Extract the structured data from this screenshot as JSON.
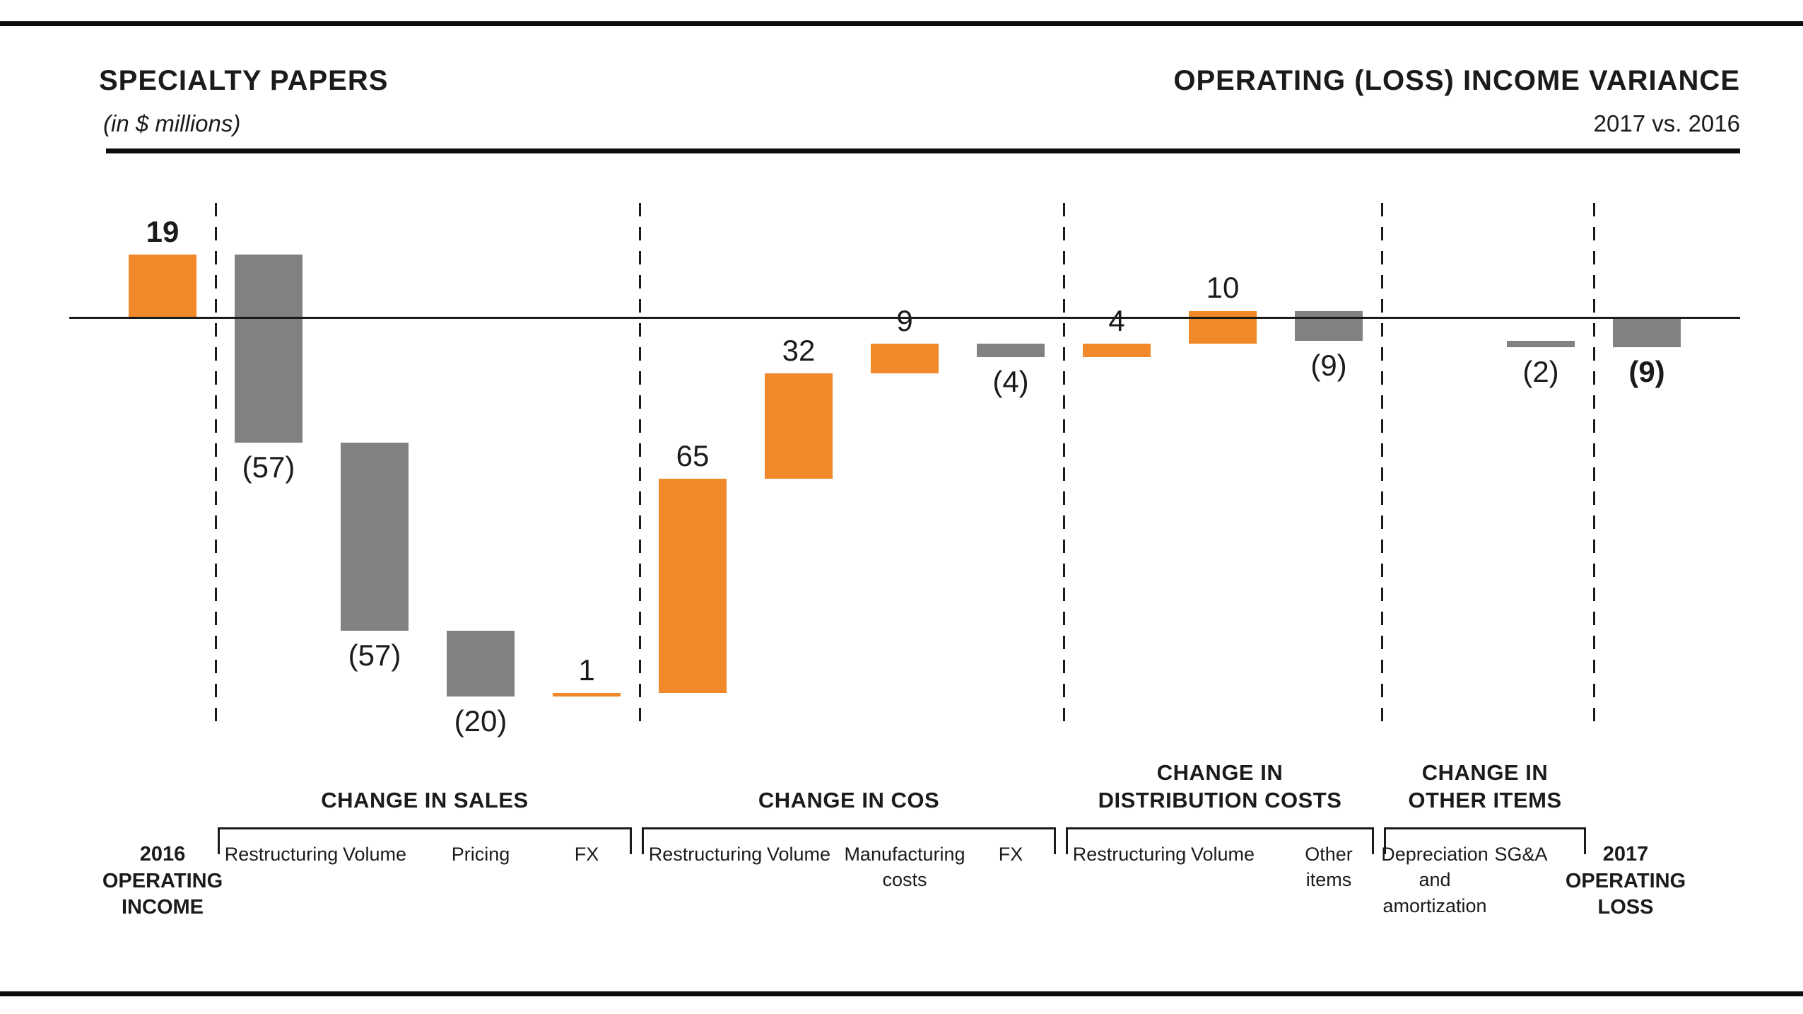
{
  "header": {
    "title": "SPECIALTY PAPERS",
    "subtitle": "(in $ millions)",
    "right_title": "OPERATING (LOSS) INCOME VARIANCE",
    "right_subtitle": "2017 vs. 2016"
  },
  "colors": {
    "positive": "#F1892B",
    "negative": "#818181",
    "ink": "#1b1b1b"
  },
  "chart_data": {
    "type": "waterfall",
    "title": "SPECIALTY PAPERS",
    "subtitle": "OPERATING (LOSS) INCOME VARIANCE 2017 vs. 2016",
    "unit": "$ millions",
    "baseline": 0,
    "value_range_shown": [
      -115,
      19
    ],
    "grid": false,
    "columns": [
      {
        "id": "income-2016",
        "kind": "total",
        "value": 19,
        "display": "19",
        "display_bold": true,
        "color": "positive",
        "label_pos": "above",
        "axis_label_lines": [
          "2016",
          "OPERATING",
          "INCOME"
        ],
        "axis_bold": true
      },
      {
        "id": "sales-restructuring",
        "group": 0,
        "kind": "delta",
        "value": -57,
        "display": "(57)",
        "color": "negative",
        "label_pos": "below",
        "axis_label_lines": [
          "Restructuring"
        ]
      },
      {
        "id": "sales-volume",
        "group": 0,
        "kind": "delta",
        "value": -57,
        "display": "(57)",
        "color": "negative",
        "label_pos": "below",
        "axis_label_lines": [
          "Volume"
        ]
      },
      {
        "id": "sales-pricing",
        "group": 0,
        "kind": "delta",
        "value": -20,
        "display": "(20)",
        "color": "negative",
        "label_pos": "below",
        "axis_label_lines": [
          "Pricing"
        ]
      },
      {
        "id": "sales-fx",
        "group": 0,
        "kind": "delta",
        "value": 1,
        "display": "1",
        "color": "positive",
        "label_pos": "above",
        "axis_label_lines": [
          "FX"
        ]
      },
      {
        "id": "cos-restructuring",
        "group": 1,
        "kind": "delta",
        "value": 65,
        "display": "65",
        "color": "positive",
        "label_pos": "above",
        "axis_label_lines": [
          "Restructuring"
        ]
      },
      {
        "id": "cos-volume",
        "group": 1,
        "kind": "delta",
        "value": 32,
        "display": "32",
        "color": "positive",
        "label_pos": "above",
        "axis_label_lines": [
          "Volume"
        ]
      },
      {
        "id": "cos-manufacturing",
        "group": 1,
        "kind": "delta",
        "value": 9,
        "display": "9",
        "color": "positive",
        "label_pos": "above",
        "axis_label_lines": [
          "Manufacturing",
          "costs"
        ]
      },
      {
        "id": "cos-fx",
        "group": 1,
        "kind": "delta",
        "value": -4,
        "display": "(4)",
        "color": "negative",
        "label_pos": "below",
        "axis_label_lines": [
          "FX"
        ]
      },
      {
        "id": "dist-restructuring",
        "group": 2,
        "kind": "delta",
        "value": 4,
        "display": "4",
        "color": "positive",
        "label_pos": "above",
        "axis_label_lines": [
          "Restructuring"
        ]
      },
      {
        "id": "dist-volume",
        "group": 2,
        "kind": "delta",
        "value": 10,
        "display": "10",
        "color": "positive",
        "label_pos": "above",
        "axis_label_lines": [
          "Volume"
        ]
      },
      {
        "id": "dist-other-items",
        "group": 2,
        "kind": "delta",
        "value": -9,
        "display": "(9)",
        "color": "negative",
        "label_pos": "below",
        "axis_label_lines": [
          "Other",
          "items"
        ]
      },
      {
        "id": "other-depreciation",
        "group": 3,
        "kind": "delta",
        "value": 0,
        "display": "",
        "color": "negative",
        "label_pos": "below",
        "axis_label_lines": [
          "Depreciation",
          "and",
          "amortization"
        ]
      },
      {
        "id": "other-sga",
        "group": 3,
        "kind": "delta",
        "value": -2,
        "display": "(2)",
        "color": "negative",
        "label_pos": "below",
        "axis_label_lines": [
          "SG&A"
        ]
      },
      {
        "id": "loss-2017",
        "kind": "total",
        "value": -9,
        "display": "(9)",
        "display_bold": true,
        "color": "negative",
        "label_pos": "below",
        "axis_label_lines": [
          "2017",
          "OPERATING",
          "LOSS"
        ],
        "axis_bold": true
      }
    ],
    "groups": [
      {
        "title_lines": [
          "CHANGE IN SALES"
        ]
      },
      {
        "title_lines": [
          "CHANGE IN COS"
        ]
      },
      {
        "title_lines": [
          "CHANGE IN",
          "DISTRIBUTION COSTS"
        ]
      },
      {
        "title_lines": [
          "CHANGE IN",
          "OTHER ITEMS"
        ]
      }
    ]
  }
}
